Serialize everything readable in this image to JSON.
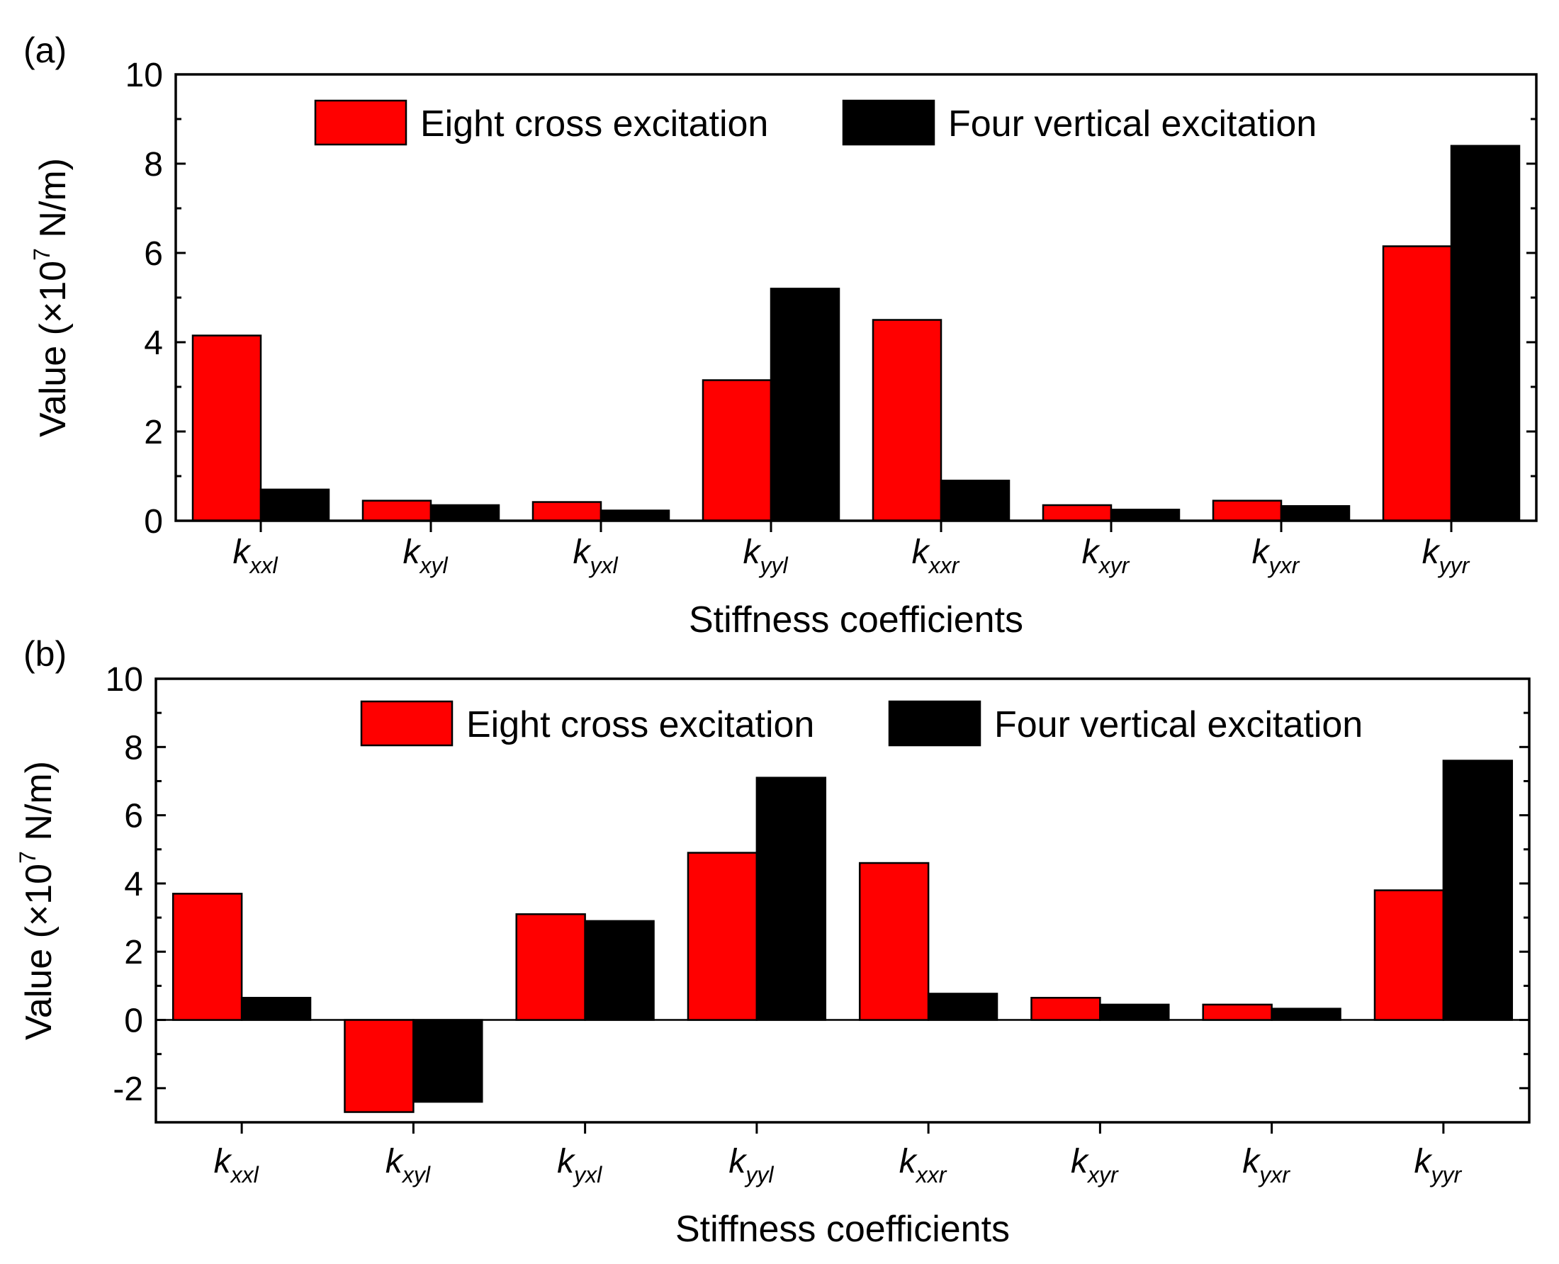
{
  "chart_data": [
    {
      "panel_label": "(a)",
      "type": "bar",
      "categories": [
        {
          "main": "k",
          "sub": "xxl"
        },
        {
          "main": "k",
          "sub": "xyl"
        },
        {
          "main": "k",
          "sub": "yxl"
        },
        {
          "main": "k",
          "sub": "yyl"
        },
        {
          "main": "k",
          "sub": "xxr"
        },
        {
          "main": "k",
          "sub": "xyr"
        },
        {
          "main": "k",
          "sub": "yxr"
        },
        {
          "main": "k",
          "sub": "yyr"
        }
      ],
      "series": [
        {
          "name": "Eight cross excitation",
          "color": "#ff0000",
          "values": [
            4.15,
            0.45,
            0.42,
            3.15,
            4.5,
            0.35,
            0.45,
            6.15
          ]
        },
        {
          "name": "Four vertical excitation",
          "color": "#000000",
          "values": [
            0.7,
            0.35,
            0.23,
            5.2,
            0.9,
            0.25,
            0.33,
            8.4
          ]
        }
      ],
      "xlabel": "Stiffness coefficients",
      "ylabel": {
        "prefix": "Value (×10",
        "exponent": "7",
        "suffix": " N/m)"
      },
      "ylim": [
        0,
        10
      ],
      "yticks": [
        "0",
        "2",
        "4",
        "6",
        "8",
        "10"
      ],
      "legend_position": "top-center"
    },
    {
      "panel_label": "(b)",
      "type": "bar",
      "categories": [
        {
          "main": "k",
          "sub": "xxl"
        },
        {
          "main": "k",
          "sub": "xyl"
        },
        {
          "main": "k",
          "sub": "yxl"
        },
        {
          "main": "k",
          "sub": "yyl"
        },
        {
          "main": "k",
          "sub": "xxr"
        },
        {
          "main": "k",
          "sub": "xyr"
        },
        {
          "main": "k",
          "sub": "yxr"
        },
        {
          "main": "k",
          "sub": "yyr"
        }
      ],
      "series": [
        {
          "name": "Eight cross excitation",
          "color": "#ff0000",
          "values": [
            3.7,
            -2.7,
            3.1,
            4.9,
            4.6,
            0.65,
            0.45,
            3.8
          ]
        },
        {
          "name": "Four vertical excitation",
          "color": "#000000",
          "values": [
            0.65,
            -2.4,
            2.9,
            7.1,
            0.77,
            0.45,
            0.33,
            7.6
          ]
        }
      ],
      "xlabel": "Stiffness coefficients",
      "ylabel": {
        "prefix": "Value (×10",
        "exponent": "7",
        "suffix": " N/m)"
      },
      "ylim": [
        -3,
        10
      ],
      "yticks": [
        "-2",
        "0",
        "2",
        "4",
        "6",
        "8",
        "10"
      ],
      "legend_position": "top-right"
    }
  ]
}
